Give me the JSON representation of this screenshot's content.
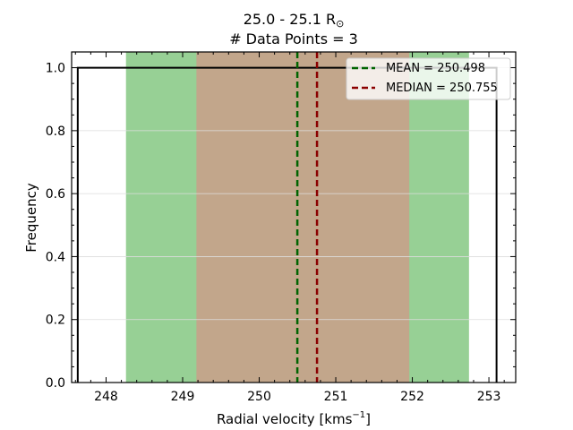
{
  "chart_data": {
    "type": "bar",
    "title_line1": "25.0 - 25.1 R",
    "title_symbol": "⊙",
    "title_line2": "# Data Points = 3",
    "xlabel": "Radial velocity [kms",
    "xlabel_exp": "−1",
    "xlabel_end": "]",
    "ylabel": "Frequency",
    "xlim": [
      247.55,
      253.35
    ],
    "ylim": [
      0,
      1.05
    ],
    "xticks": [
      248,
      249,
      250,
      251,
      252,
      253
    ],
    "yticks": [
      0.0,
      0.2,
      0.4,
      0.6,
      0.8,
      1.0
    ],
    "grid": "horizontal",
    "histogram": {
      "bin_start": 247.63,
      "bin_end": 253.1,
      "value": 1.0,
      "color": "#000000"
    },
    "bands": [
      {
        "from": 248.26,
        "to": 252.74,
        "color": "#97d095"
      },
      {
        "from": 249.18,
        "to": 251.96,
        "color": "#c2a68b"
      }
    ],
    "series": [
      {
        "name": "MEAN = 250.498",
        "x": 250.498,
        "color": "#006400"
      },
      {
        "name": "MEDIAN = 250.755",
        "x": 250.755,
        "color": "#8b0000"
      }
    ],
    "legend": "top-right"
  }
}
